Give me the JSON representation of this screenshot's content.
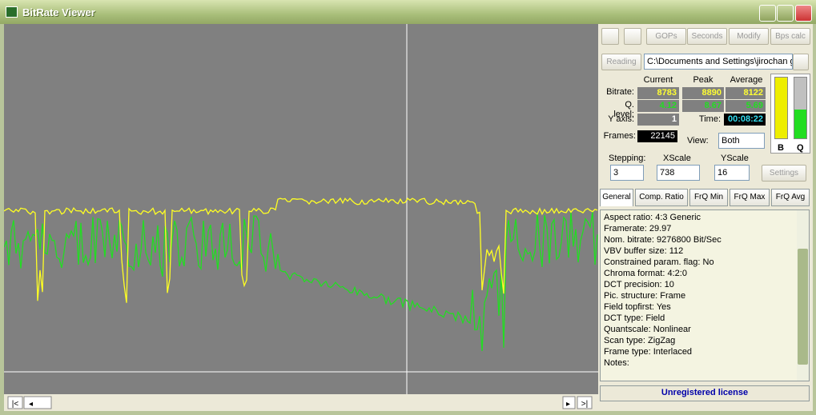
{
  "window": {
    "title": "BitRate Viewer"
  },
  "toolbar": {
    "buttons": [
      "GOPs",
      "Seconds",
      "Modify",
      "Bps calc"
    ]
  },
  "source": {
    "button": "Reading",
    "path": "C:\\Documents and Settings\\jirochan g"
  },
  "stats": {
    "headers": [
      "Current",
      "Peak",
      "Average"
    ],
    "rows": [
      {
        "label": "Bitrate:",
        "values": [
          "8783",
          "8890",
          "8122"
        ]
      },
      {
        "label": "Q. level:",
        "values": [
          "4.12",
          "8.67",
          "5.69"
        ]
      }
    ],
    "y_axis": {
      "label": "Y axis:",
      "value": "1"
    },
    "time": {
      "label": "Time:",
      "value": "00:08:22"
    },
    "frames": {
      "label": "Frames:",
      "value": "22145"
    },
    "view": {
      "label": "View:",
      "value": "Both"
    },
    "meters": [
      "B",
      "Q"
    ]
  },
  "controls": [
    {
      "label": "Stepping:",
      "value": "3"
    },
    {
      "label": "XScale",
      "value": "738"
    },
    {
      "label": "YScale",
      "value": "16"
    }
  ],
  "settings_button": "Settings",
  "tabs": [
    "General",
    "Comp. Ratio",
    "FrQ Min",
    "FrQ Max",
    "FrQ Avg"
  ],
  "info_lines": [
    "Aspect ratio: 4:3 Generic",
    "Framerate: 29.97",
    "Nom. bitrate: 9276800 Bit/Sec",
    "VBV buffer size: 112",
    "Constrained param. flag: No",
    "Chroma format: 4:2:0",
    "DCT precision: 10",
    "Pic. structure: Frame",
    "Field topfirst: Yes",
    "DCT type: Field",
    "Quantscale: Nonlinear",
    "Scan type: ZigZag",
    "Frame type: Interlaced",
    "Notes:"
  ],
  "status": "Unregistered license"
}
